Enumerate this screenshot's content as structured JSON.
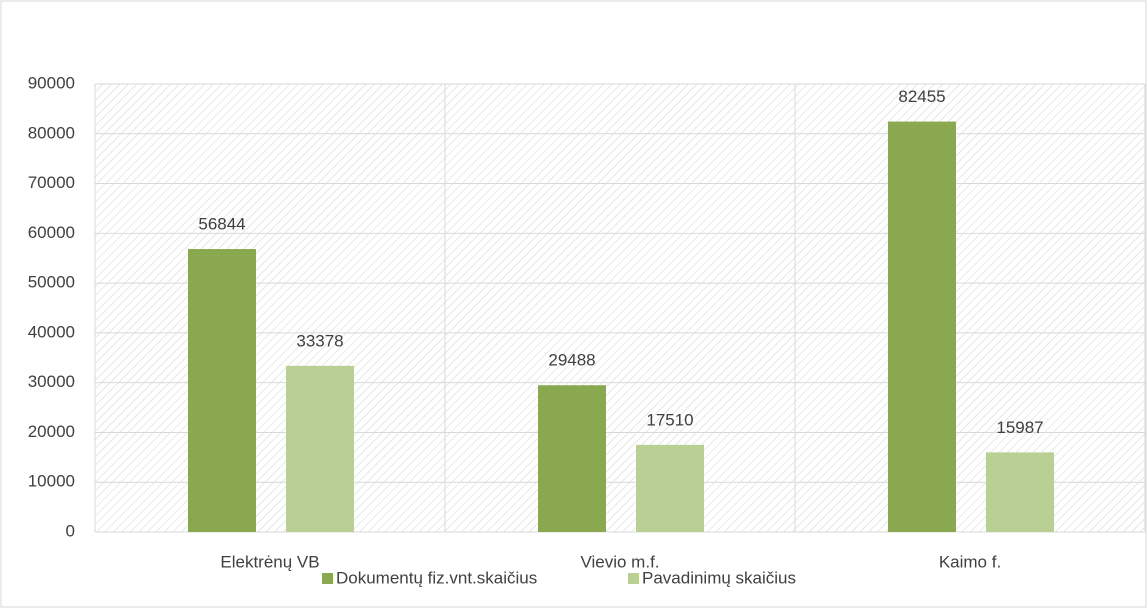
{
  "chart_data": {
    "type": "bar",
    "categories": [
      "Elektrėnų VB",
      "Vievio m.f.",
      "Kaimo f."
    ],
    "series": [
      {
        "name": "Dokumentų fiz.vnt.skaičius",
        "color": "#8aa84f",
        "values": [
          56844,
          29488,
          82455
        ]
      },
      {
        "name": "Pavadinimų skaičius",
        "color": "#b9cf94",
        "values": [
          33378,
          17510,
          15987
        ]
      }
    ],
    "ylim": [
      0,
      90000
    ],
    "yticks": [
      0,
      10000,
      20000,
      30000,
      40000,
      50000,
      60000,
      70000,
      80000,
      90000
    ],
    "grid": true,
    "legend": "bottom"
  }
}
